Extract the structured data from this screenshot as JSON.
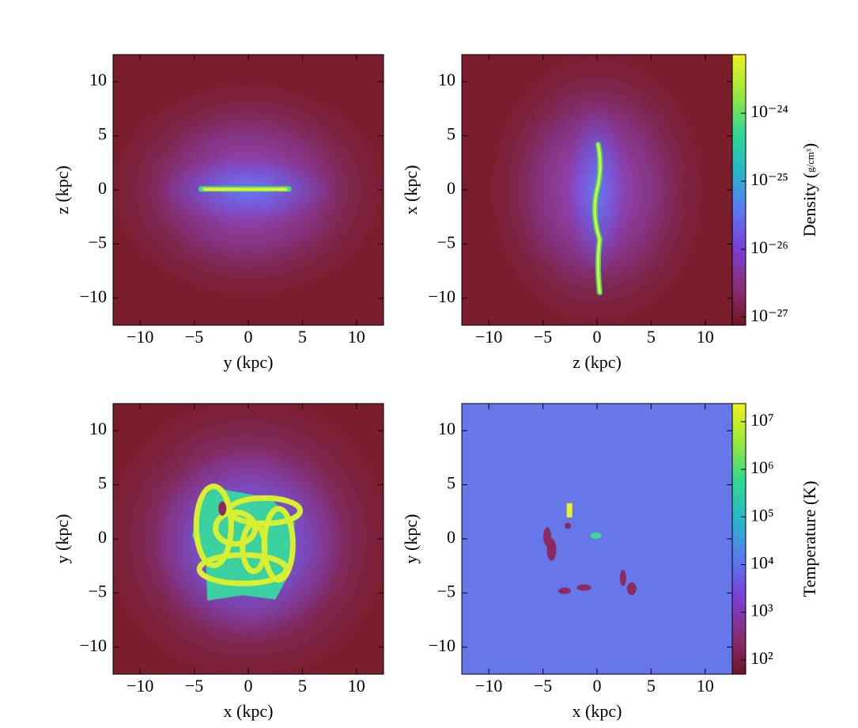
{
  "chart_data": [
    {
      "type": "image",
      "xlabel": "y  (kpc)",
      "ylabel": "z  (kpc)",
      "xlim": [
        -12.5,
        12.5
      ],
      "ylim": [
        -12.5,
        12.5
      ],
      "xticks": [
        {
          "value": -10,
          "label": "−10"
        },
        {
          "value": -5,
          "label": "−5"
        },
        0,
        5,
        10
      ],
      "yticks": [
        {
          "value": -10,
          "label": "−10"
        },
        {
          "value": -5,
          "label": "−5"
        },
        0,
        5,
        10
      ]
    },
    {
      "type": "image",
      "xlabel": "z  (kpc)",
      "ylabel": "x  (kpc)",
      "xlim": [
        -12.5,
        12.5
      ],
      "ylim": [
        -12.5,
        12.5
      ],
      "xticks": [
        {
          "value": -10,
          "label": "−10"
        },
        {
          "value": -5,
          "label": "−5"
        },
        0,
        5,
        10
      ],
      "yticks": [
        {
          "value": -10,
          "label": "−10"
        },
        {
          "value": -5,
          "label": "−5"
        },
        0,
        5,
        10
      ],
      "colorbar": {
        "label": "Density",
        "unit": {
          "numerator": "g",
          "denominator": "cm³"
        },
        "log": true,
        "lim": [
          7.6e-28,
          7.3e-24
        ],
        "ticks": [
          {
            "value": 1e-27,
            "label": "10⁻²⁷"
          },
          {
            "value": 1e-26,
            "label": "10⁻²⁶"
          },
          {
            "value": 1e-25,
            "label": "10⁻²⁵"
          },
          {
            "value": 1e-24,
            "label": "10⁻²⁴"
          }
        ],
        "colormap": [
          "#6e1424",
          "#8a2f78",
          "#7a3fd8",
          "#5a7af0",
          "#25b8c8",
          "#30d890",
          "#9ae838",
          "#f0f020"
        ]
      }
    },
    {
      "type": "image",
      "xlabel": "x  (kpc)",
      "ylabel": "y  (kpc)",
      "xlim": [
        -12.5,
        12.5
      ],
      "ylim": [
        -12.5,
        12.5
      ],
      "xticks": [
        {
          "value": -10,
          "label": "−10"
        },
        {
          "value": -5,
          "label": "−5"
        },
        0,
        5,
        10
      ],
      "yticks": [
        {
          "value": -10,
          "label": "−10"
        },
        {
          "value": -5,
          "label": "−5"
        },
        0,
        5,
        10
      ]
    },
    {
      "type": "image",
      "xlabel": "x  (kpc)",
      "ylabel": "y  (kpc)",
      "xlim": [
        -12.5,
        12.5
      ],
      "ylim": [
        -12.5,
        12.5
      ],
      "xticks": [
        {
          "value": -10,
          "label": "−10"
        },
        {
          "value": -5,
          "label": "−5"
        },
        0,
        5,
        10
      ],
      "yticks": [
        {
          "value": -10,
          "label": "−10"
        },
        {
          "value": -5,
          "label": "−5"
        },
        0,
        5,
        10
      ],
      "colorbar": {
        "label": "Temperature",
        "unit": {
          "text": "K"
        },
        "log": true,
        "lim": [
          50,
          24000000
        ],
        "ticks": [
          {
            "value": 100,
            "label": "10²"
          },
          {
            "value": 1000,
            "label": "10³"
          },
          {
            "value": 10000,
            "label": "10⁴"
          },
          {
            "value": 100000,
            "label": "10⁵"
          },
          {
            "value": 1000000,
            "label": "10⁶"
          },
          {
            "value": 10000000,
            "label": "10⁷"
          }
        ],
        "colormap": [
          "#6e1424",
          "#8a2f78",
          "#7a3fd8",
          "#5a7af0",
          "#25b8c8",
          "#30d890",
          "#9ae838",
          "#f0f020"
        ]
      }
    }
  ]
}
